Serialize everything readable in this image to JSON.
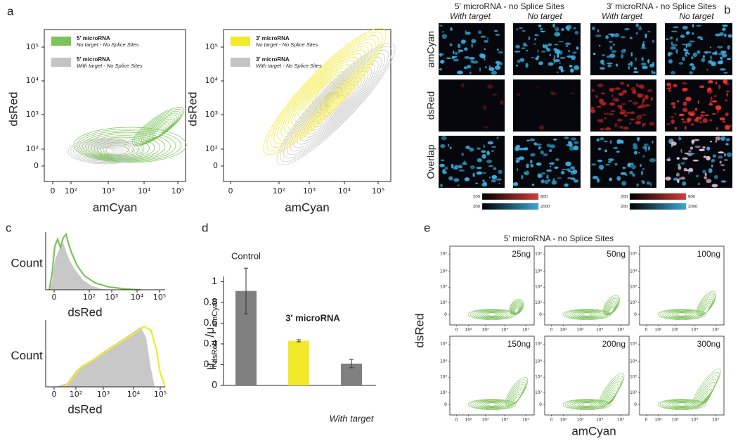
{
  "figure": {
    "panel_a": {
      "label": "a",
      "plots": [
        {
          "xlabel": "amCyan",
          "ylabel": "dsRed",
          "xticks": [
            "0",
            "10²",
            "10³",
            "10⁴",
            "10⁵"
          ],
          "yticks": [
            "0",
            "10²",
            "10³",
            "10⁴",
            "10⁵"
          ],
          "legend": [
            {
              "name": "5′ microRNA",
              "note": "No target - No Splice Sites",
              "color": "#7cc35a"
            },
            {
              "name": "5′ microRNA",
              "note": "With target - No Splice Sites",
              "color": "#c4c4c4"
            }
          ]
        },
        {
          "xlabel": "amCyan",
          "ylabel": "dsRed",
          "xticks": [
            "0",
            "10²",
            "10³",
            "10⁴",
            "10⁵"
          ],
          "yticks": [
            "0",
            "10²",
            "10³",
            "10⁴",
            "10⁵"
          ],
          "legend": [
            {
              "name": "3′ microRNA",
              "note": "No target - No Splice Sites",
              "color": "#f2e92a"
            },
            {
              "name": "3′ microRNA",
              "note": "With target - No Splice Sites",
              "color": "#c4c4c4"
            }
          ]
        }
      ]
    },
    "panel_b": {
      "label": "b",
      "rows": [
        "amCyan",
        "dsRed",
        "Overlap"
      ],
      "groups": [
        {
          "title": "5′ microRNA - no Splice Sites",
          "columns": [
            "With target",
            "No target"
          ],
          "scales": [
            {
              "min": 200,
              "max": 600,
              "color": "#d93a3a"
            },
            {
              "min": 200,
              "max": 2000,
              "color": "#3aa8d8"
            }
          ]
        },
        {
          "title": "3′ microRNA - no Splice Sites",
          "columns": [
            "With target",
            "No target"
          ],
          "scales": [
            {
              "min": 200,
              "max": 900,
              "color": "#d93a3a"
            },
            {
              "min": 200,
              "max": 2000,
              "color": "#3aa8d8"
            }
          ]
        }
      ]
    },
    "panel_c": {
      "label": "c",
      "plots": [
        {
          "ylabel": "Count",
          "xlabel": "dsRed",
          "xticks": [
            "0",
            "10²",
            "10³",
            "10⁴",
            "10⁵"
          ],
          "colors": [
            "#c8c8c8",
            "#7cc35a"
          ]
        },
        {
          "ylabel": "Count",
          "xlabel": "dsRed",
          "xticks": [
            "0",
            "10²",
            "10³",
            "10⁴",
            "10⁵"
          ],
          "colors": [
            "#c8c8c8",
            "#f2e92a"
          ]
        }
      ]
    },
    "panel_d": {
      "label": "d"
    },
    "panel_e": {
      "label": "e",
      "title": "5′ microRNA - no Splice Sites",
      "ylabel": "dsRed",
      "xlabel": "amCyan",
      "color": "#7cc35a",
      "plots": [
        {
          "label": "25ng",
          "xticks": [
            "0",
            "10²",
            "10³",
            "10⁴",
            "10⁵"
          ],
          "yticks": [
            "0",
            "10²",
            "10³",
            "10⁴",
            "10⁵"
          ]
        },
        {
          "label": "50ng",
          "xticks": [
            "0",
            "10²",
            "10³",
            "10⁴",
            "10⁵"
          ],
          "yticks": [
            "0",
            "10²",
            "10³",
            "10⁴",
            "10⁵"
          ]
        },
        {
          "label": "100ng",
          "xticks": [
            "0",
            "10²",
            "10³",
            "10⁴",
            "10⁵"
          ],
          "yticks": [
            "0",
            "10²",
            "10³",
            "10⁴",
            "10⁵"
          ]
        },
        {
          "label": "150ng",
          "xticks": [
            "0",
            "10²",
            "10³",
            "10⁴",
            "10⁵"
          ],
          "yticks": [
            "0",
            "10²",
            "10³",
            "10⁴",
            "10⁵"
          ]
        },
        {
          "label": "200ng",
          "xticks": [
            "0",
            "10²",
            "10³",
            "10⁴",
            "10⁵"
          ],
          "yticks": [
            "0",
            "10²",
            "10³",
            "10⁴",
            "10⁵"
          ]
        },
        {
          "label": "300ng",
          "xticks": [
            "0",
            "10²",
            "10³",
            "10⁴",
            "10⁵"
          ],
          "yticks": [
            "0",
            "10²",
            "10³",
            "10⁴",
            "10⁵"
          ]
        }
      ]
    }
  },
  "chart_data": {
    "type": "bar",
    "ylabel": [
      {
        "text": "μ"
      },
      {
        "text": "dsRed",
        "sub": true
      },
      {
        "text": " /μ"
      },
      {
        "text": "amCyan",
        "sub": true
      }
    ],
    "categories": [
      "Control",
      "3′ microRNA",
      "With target"
    ],
    "label_positions": [
      "above",
      "above",
      "below"
    ],
    "label_styles": [
      "normal",
      "bold",
      "italic"
    ],
    "values": [
      0.91,
      0.43,
      0.21
    ],
    "errors": [
      0.22,
      0.01,
      0.04
    ],
    "colors": [
      "#808080",
      "#f2e92a",
      "#808080"
    ],
    "ylim": [
      0,
      1.05
    ],
    "yticks": [
      0,
      0.2,
      0.4,
      0.6,
      0.8,
      1
    ]
  }
}
